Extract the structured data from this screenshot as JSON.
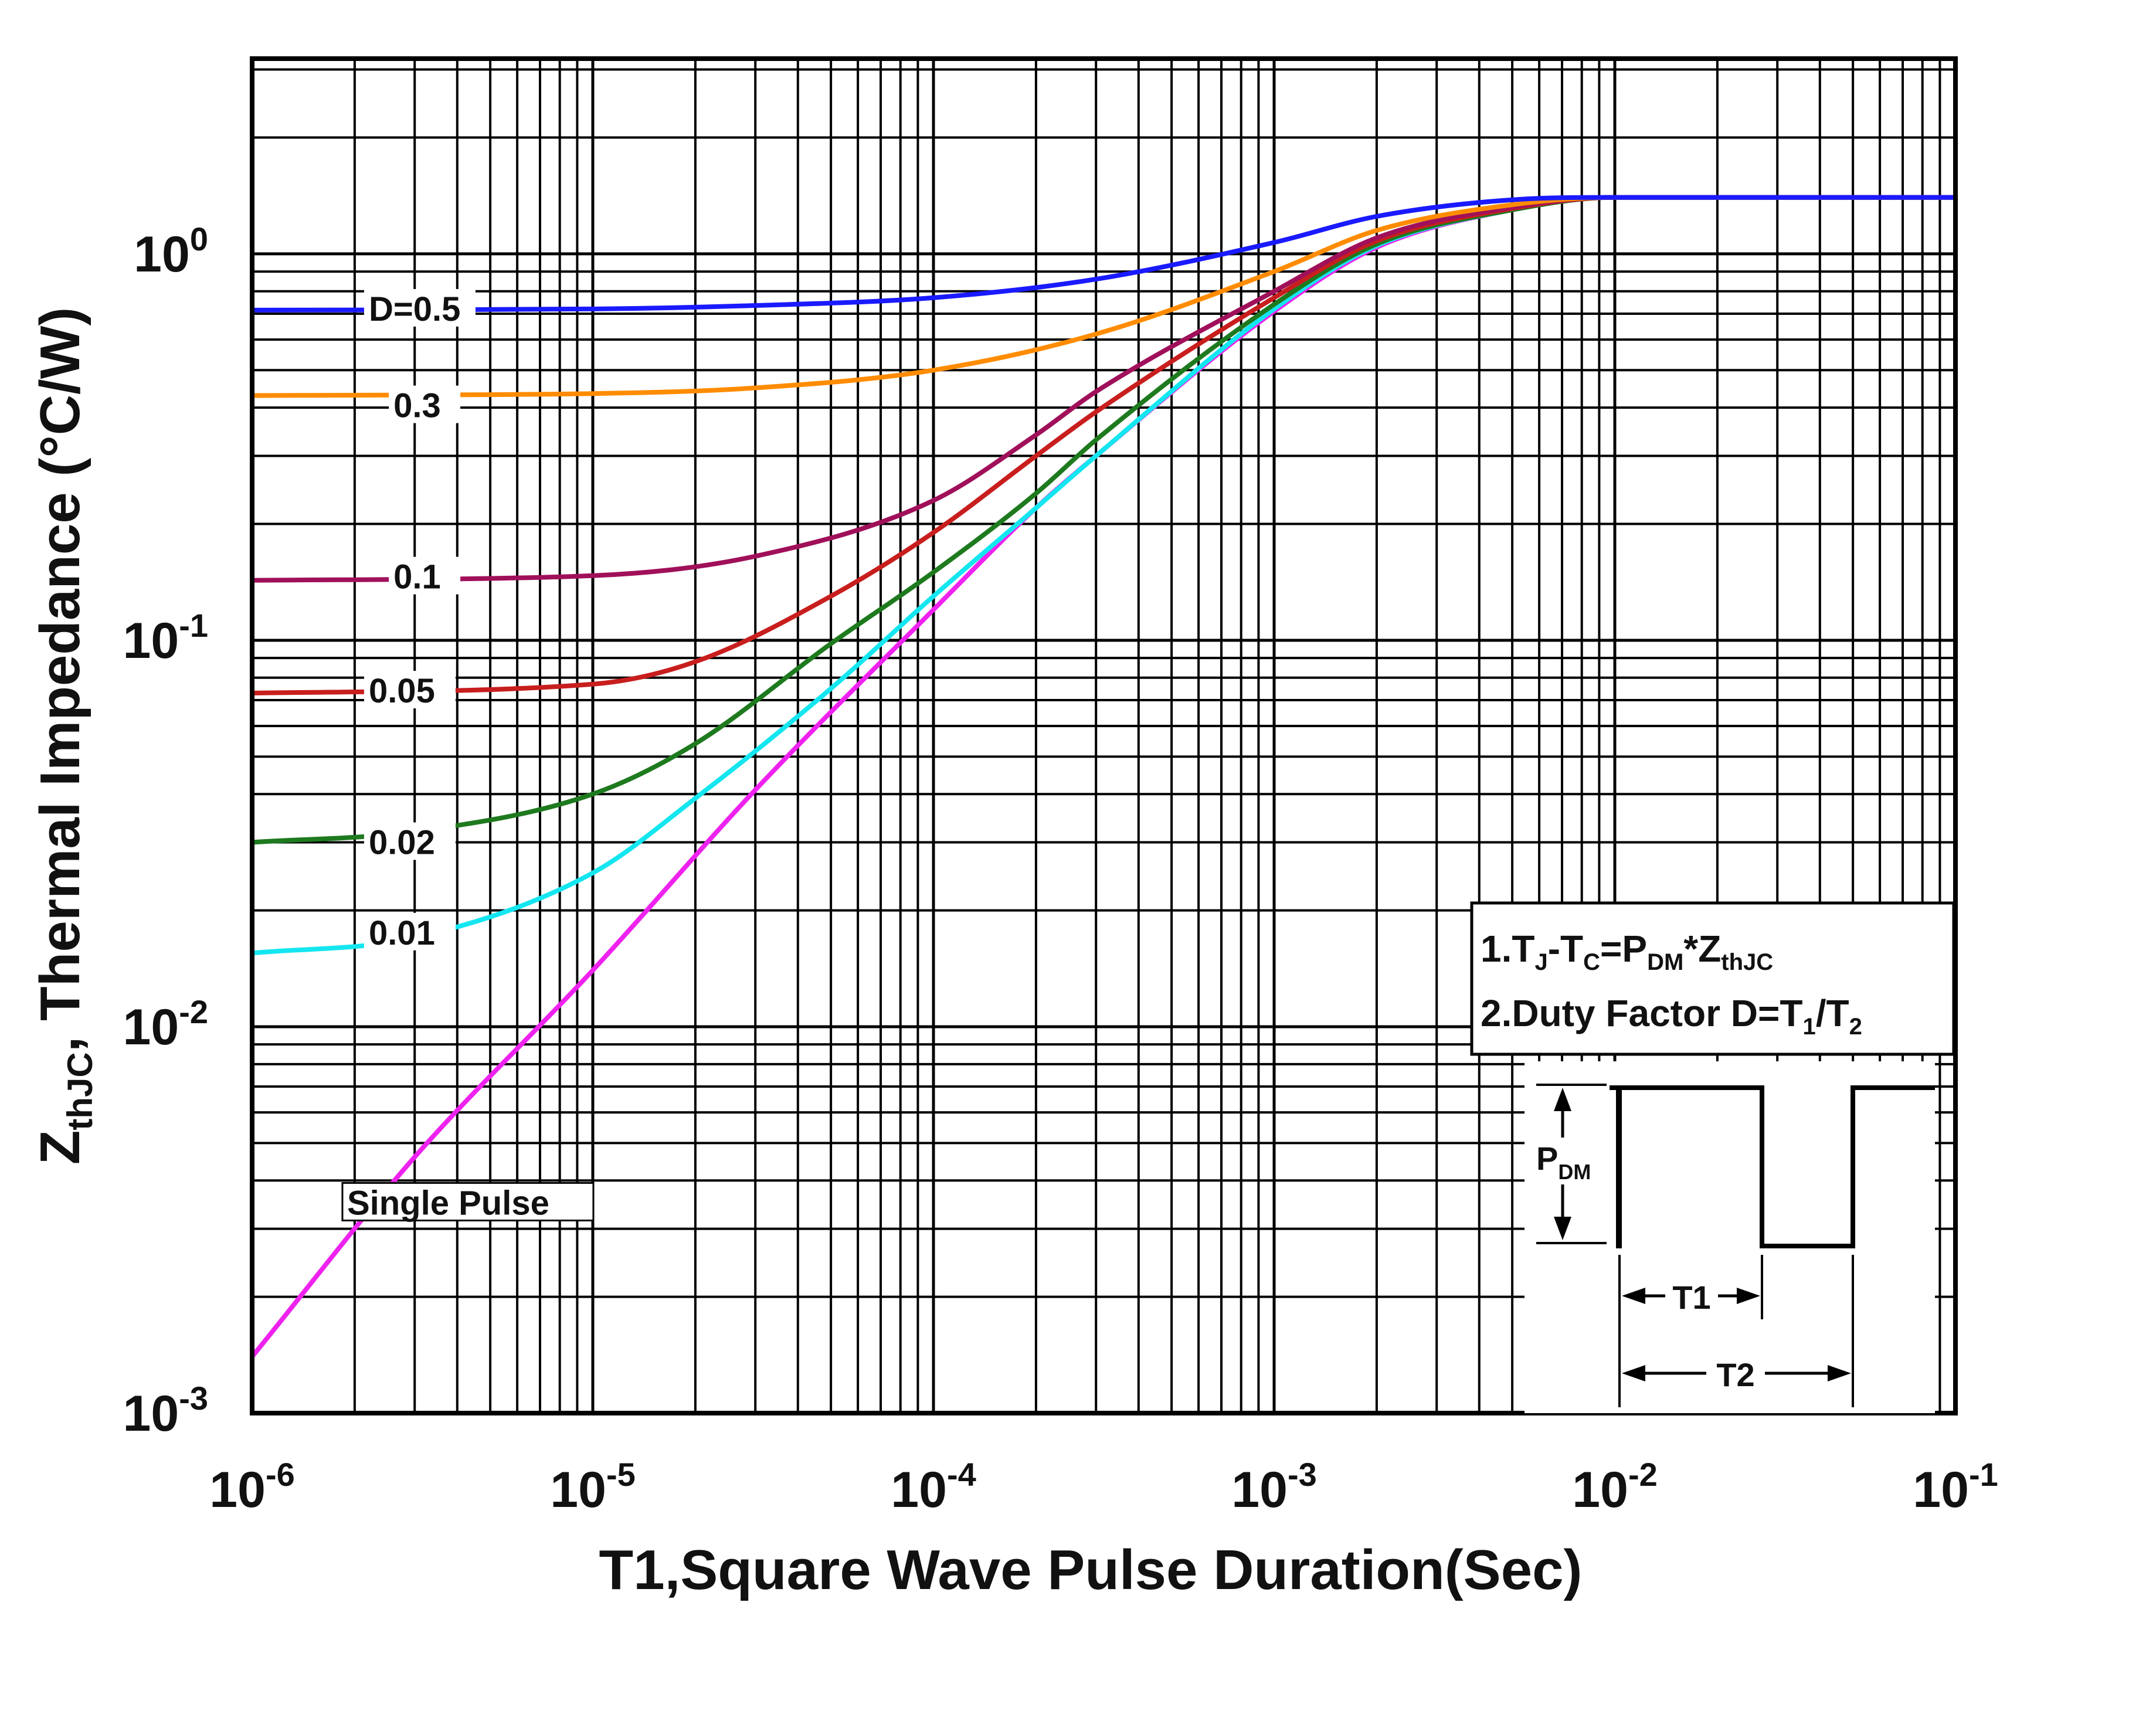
{
  "chart_data": {
    "type": "line",
    "title": "",
    "xlabel": "T1,Square Wave Pulse Duration(Sec)",
    "ylabel": {
      "main": "Z",
      "sub": "thJC",
      "rest": ", Thermal  Impedance (°C/W)"
    },
    "x_scale": "log",
    "y_scale": "log",
    "xlim": [
      1e-06,
      0.1
    ],
    "ylim": [
      0.001,
      3.2
    ],
    "grid": true,
    "x_ticks": [
      {
        "base": "10",
        "exp": "-6",
        "value": 1e-06
      },
      {
        "base": "10",
        "exp": "-5",
        "value": 1e-05
      },
      {
        "base": "10",
        "exp": "-4",
        "value": 0.0001
      },
      {
        "base": "10",
        "exp": "-3",
        "value": 0.001
      },
      {
        "base": "10",
        "exp": "-2",
        "value": 0.01
      },
      {
        "base": "10",
        "exp": "-1",
        "value": 0.1
      }
    ],
    "y_ticks": [
      {
        "base": "10",
        "exp": "0",
        "value": 1
      },
      {
        "base": "10",
        "exp": "-1",
        "value": 0.1
      },
      {
        "base": "10",
        "exp": "-2",
        "value": 0.01
      },
      {
        "base": "10",
        "exp": "-3",
        "value": 0.001
      }
    ],
    "series": [
      {
        "name": "D=0.5",
        "label": "D=0.5",
        "color": "#1a1aff",
        "label_at": [
          2.2e-06,
          0.72
        ],
        "points": [
          [
            1e-06,
            0.715
          ],
          [
            1e-05,
            0.72
          ],
          [
            3e-05,
            0.735
          ],
          [
            0.0001,
            0.77
          ],
          [
            0.0003,
            0.86
          ],
          [
            0.001,
            1.07
          ],
          [
            0.002,
            1.25
          ],
          [
            0.005,
            1.38
          ],
          [
            0.01,
            1.4
          ],
          [
            0.1,
            1.4
          ]
        ]
      },
      {
        "name": "0.3",
        "label": "0.3",
        "color": "#ff8c00",
        "label_at": [
          2.6e-06,
          0.405
        ],
        "points": [
          [
            1e-06,
            0.43
          ],
          [
            1e-05,
            0.435
          ],
          [
            3e-05,
            0.45
          ],
          [
            0.0001,
            0.5
          ],
          [
            0.0003,
            0.62
          ],
          [
            0.001,
            0.9
          ],
          [
            0.002,
            1.15
          ],
          [
            0.005,
            1.34
          ],
          [
            0.01,
            1.4
          ],
          [
            0.1,
            1.4
          ]
        ]
      },
      {
        "name": "0.1",
        "label": "0.1",
        "color": "#a0105a",
        "label_at": [
          2.6e-06,
          0.146
        ],
        "points": [
          [
            1e-06,
            0.143
          ],
          [
            1e-05,
            0.147
          ],
          [
            3e-05,
            0.165
          ],
          [
            0.0001,
            0.23
          ],
          [
            0.0002,
            0.34
          ],
          [
            0.0003,
            0.44
          ],
          [
            0.001,
            0.8
          ],
          [
            0.002,
            1.1
          ],
          [
            0.005,
            1.32
          ],
          [
            0.01,
            1.4
          ],
          [
            0.1,
            1.4
          ]
        ]
      },
      {
        "name": "0.05",
        "label": "0.05",
        "color": "#c81e1e",
        "label_at": [
          2.2e-06,
          0.074
        ],
        "points": [
          [
            1e-06,
            0.073
          ],
          [
            1e-05,
            0.077
          ],
          [
            2e-05,
            0.088
          ],
          [
            5e-05,
            0.13
          ],
          [
            0.0001,
            0.19
          ],
          [
            0.0002,
            0.3
          ],
          [
            0.0003,
            0.39
          ],
          [
            0.001,
            0.77
          ],
          [
            0.002,
            1.08
          ],
          [
            0.005,
            1.31
          ],
          [
            0.01,
            1.4
          ],
          [
            0.1,
            1.4
          ]
        ]
      },
      {
        "name": "0.02",
        "label": "0.02",
        "color": "#1e7a1e",
        "label_at": [
          2.2e-06,
          0.03
        ],
        "points": [
          [
            1e-06,
            0.03
          ],
          [
            3e-06,
            0.032
          ],
          [
            1e-05,
            0.04
          ],
          [
            2e-05,
            0.054
          ],
          [
            5e-05,
            0.098
          ],
          [
            0.0001,
            0.15
          ],
          [
            0.0002,
            0.24
          ],
          [
            0.0003,
            0.33
          ],
          [
            0.001,
            0.74
          ],
          [
            0.002,
            1.06
          ],
          [
            0.005,
            1.3
          ],
          [
            0.01,
            1.4
          ],
          [
            0.1,
            1.4
          ]
        ]
      },
      {
        "name": "0.01",
        "label": "0.01",
        "color": "#14e6f0",
        "label_at": [
          2.2e-06,
          0.0175
        ],
        "points": [
          [
            1e-06,
            0.0155
          ],
          [
            3e-06,
            0.017
          ],
          [
            1e-05,
            0.025
          ],
          [
            2e-05,
            0.039
          ],
          [
            5e-05,
            0.075
          ],
          [
            0.0001,
            0.13
          ],
          [
            0.0002,
            0.22
          ],
          [
            0.0003,
            0.3
          ],
          [
            0.001,
            0.72
          ],
          [
            0.002,
            1.05
          ],
          [
            0.005,
            1.3
          ],
          [
            0.01,
            1.4
          ],
          [
            0.1,
            1.4
          ]
        ]
      },
      {
        "name": "Single Pulse",
        "label": "Single Pulse",
        "color": "#ee22ee",
        "label_at": [
          1.9e-06,
          0.0035
        ],
        "points": [
          [
            1e-06,
            0.0014
          ],
          [
            3e-06,
            0.0046
          ],
          [
            1e-05,
            0.014
          ],
          [
            3e-05,
            0.041
          ],
          [
            0.0001,
            0.12
          ],
          [
            0.0002,
            0.22
          ],
          [
            0.0003,
            0.3
          ],
          [
            0.001,
            0.71
          ],
          [
            0.002,
            1.04
          ],
          [
            0.005,
            1.3
          ],
          [
            0.01,
            1.4
          ],
          [
            0.1,
            1.4
          ]
        ]
      }
    ],
    "notes": [
      {
        "parts": [
          "1.T",
          "J",
          "-T",
          "C",
          "=P",
          "DM",
          "*Z",
          "thJC"
        ]
      },
      {
        "parts": [
          "2.Duty Factor D=T",
          "1",
          "/T",
          "2"
        ]
      }
    ],
    "pulse_diagram": {
      "pdm_main": "P",
      "pdm_sub": "DM",
      "t1_label": "T1",
      "t2_label": "T2"
    }
  }
}
